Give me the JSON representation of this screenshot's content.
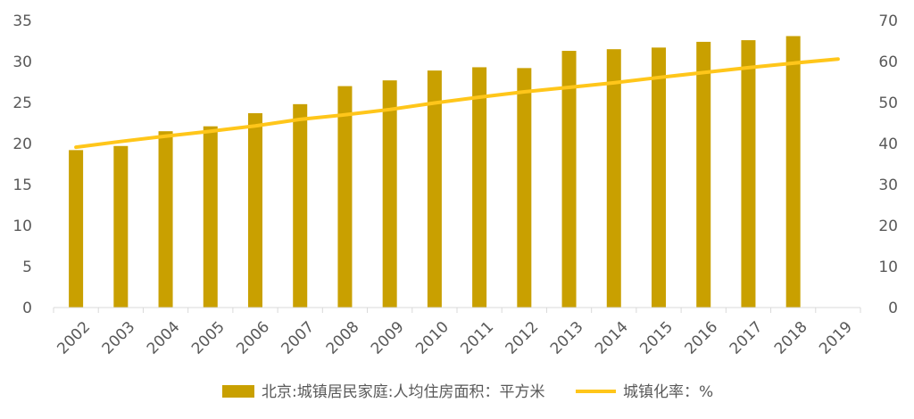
{
  "chart_data": {
    "type": "bar",
    "categories": [
      "2002",
      "2003",
      "2004",
      "2005",
      "2006",
      "2007",
      "2008",
      "2009",
      "2010",
      "2011",
      "2012",
      "2013",
      "2014",
      "2015",
      "2016",
      "2017",
      "2018",
      "2019"
    ],
    "series": [
      {
        "name": "北京:城镇居民家庭:人均住房面积：平方米",
        "type": "bar",
        "axis": "left",
        "color": "#C9A000",
        "values": [
          19.2,
          19.7,
          21.5,
          22.1,
          23.7,
          24.8,
          27.0,
          27.7,
          28.9,
          29.3,
          29.2,
          31.3,
          31.5,
          31.7,
          32.4,
          32.6,
          33.1,
          null
        ]
      },
      {
        "name": "城镇化率：%",
        "type": "line",
        "axis": "right",
        "color": "#FFC61A",
        "values": [
          39.1,
          40.5,
          41.8,
          43.0,
          44.3,
          45.9,
          47.0,
          48.3,
          49.9,
          51.3,
          52.6,
          53.7,
          54.8,
          56.1,
          57.3,
          58.5,
          59.6,
          60.6
        ]
      }
    ],
    "y_left": {
      "min": 0,
      "max": 35,
      "ticks": [
        0,
        5,
        10,
        15,
        20,
        25,
        30,
        35
      ]
    },
    "y_right": {
      "min": 0,
      "max": 70,
      "ticks": [
        0,
        10,
        20,
        30,
        40,
        50,
        60,
        70
      ]
    },
    "grid": false,
    "legend_position": "bottom"
  }
}
